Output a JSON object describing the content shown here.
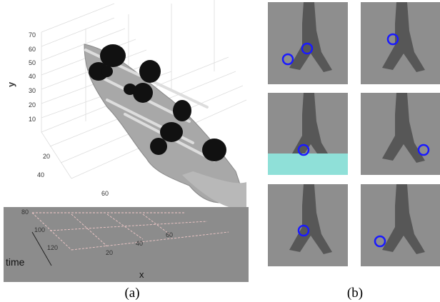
{
  "figure": {
    "panel_a": {
      "label": "(a)",
      "y_axis": {
        "label": "y",
        "ticks": [
          70,
          60,
          50,
          40,
          30,
          20,
          10
        ]
      },
      "depth_axis": {
        "ticks": [
          20,
          40,
          60
        ]
      },
      "time_axis": {
        "label": "time",
        "ticks": [
          80,
          100,
          120
        ]
      },
      "x_axis": {
        "label": "x",
        "ticks": [
          20,
          40,
          60
        ]
      }
    },
    "panel_b": {
      "label": "(b)"
    }
  }
}
